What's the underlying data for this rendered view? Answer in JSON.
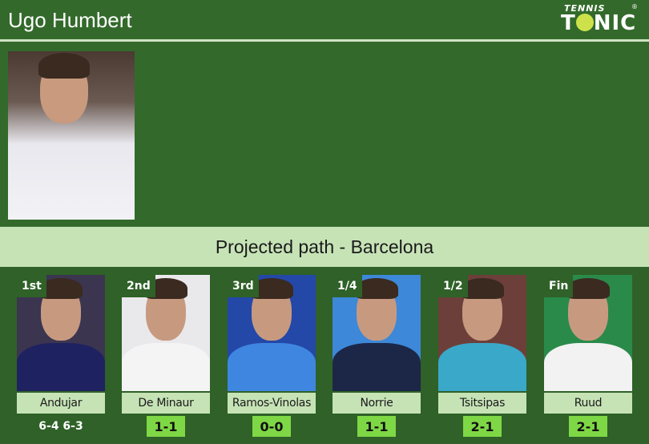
{
  "header": {
    "title": "Ugo Humbert",
    "logo_top": "TENNIS",
    "logo_main_a": "T",
    "logo_main_b": "NIC",
    "logo_reg": "®"
  },
  "panel": {
    "title": "Projected path - Barcelona"
  },
  "rounds": [
    {
      "round": "1st",
      "name": "Andujar",
      "score": "6-4 6-3",
      "type": "result",
      "bg": "#3b3550",
      "shirt": "#1f2260"
    },
    {
      "round": "2nd",
      "name": "De Minaur",
      "score": "1-1",
      "type": "h2h",
      "bg": "#e9e9ec",
      "shirt": "#f4f4f4"
    },
    {
      "round": "3rd",
      "name": "Ramos-Vinolas",
      "score": "0-0",
      "type": "h2h",
      "bg": "#2348a8",
      "shirt": "#3f86e0"
    },
    {
      "round": "1/4",
      "name": "Norrie",
      "score": "1-1",
      "type": "h2h",
      "bg": "#3d88d8",
      "shirt": "#1c2747"
    },
    {
      "round": "1/2",
      "name": "Tsitsipas",
      "score": "2-1",
      "type": "h2h",
      "bg": "#6d3f3a",
      "shirt": "#3aa8c8"
    },
    {
      "round": "Fin",
      "name": "Ruud",
      "score": "2-1",
      "type": "h2h",
      "bg": "#2a8a4a",
      "shirt": "#f2f2f2"
    }
  ],
  "colors": {
    "bg": "#2f6128",
    "band": "#c6e3b6",
    "h2h": "#7ed845"
  }
}
